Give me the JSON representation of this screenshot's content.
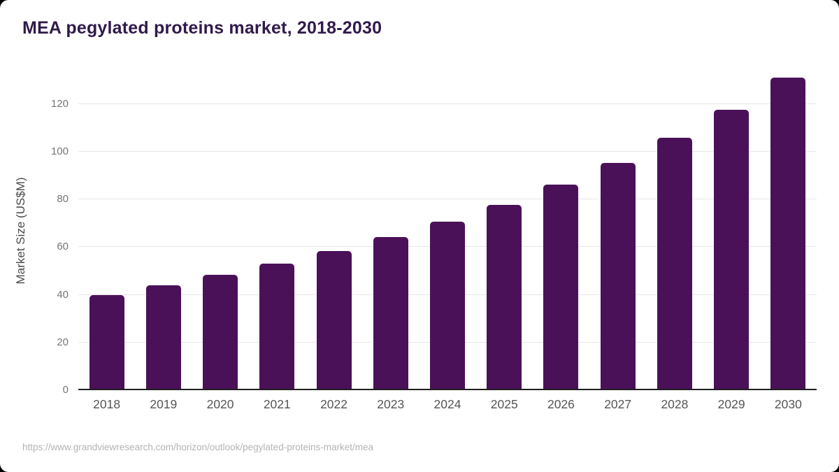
{
  "page": {
    "source_url": "https://www.grandviewresearch.com/horizon/outlook/pegylated-proteins-market/mea"
  },
  "chart_data": {
    "type": "bar",
    "title": "MEA pegylated proteins market, 2018-2030",
    "xlabel": "",
    "ylabel": "Market Size (US$M)",
    "categories": [
      "2018",
      "2019",
      "2020",
      "2021",
      "2022",
      "2023",
      "2024",
      "2025",
      "2026",
      "2027",
      "2028",
      "2029",
      "2030"
    ],
    "values": [
      40,
      44,
      48.3,
      53,
      58.3,
      64.2,
      70.7,
      77.8,
      86.2,
      95.3,
      105.9,
      117.6,
      130.9
    ],
    "yticks": [
      0,
      20,
      40,
      60,
      80,
      100,
      120
    ],
    "ylim": [
      0,
      136
    ],
    "grid": true,
    "legend": false,
    "colors": {
      "bar": "#4a1159",
      "title": "#301a4b",
      "axis_line": "#1f1f1f",
      "gridline": "#e7e7e7",
      "y_tick_text": "#757575",
      "x_tick_text": "#555555",
      "y_axis_title_text": "#4a4a4a",
      "source_text": "#b3b3b3",
      "card_background": "#ffffff"
    }
  }
}
